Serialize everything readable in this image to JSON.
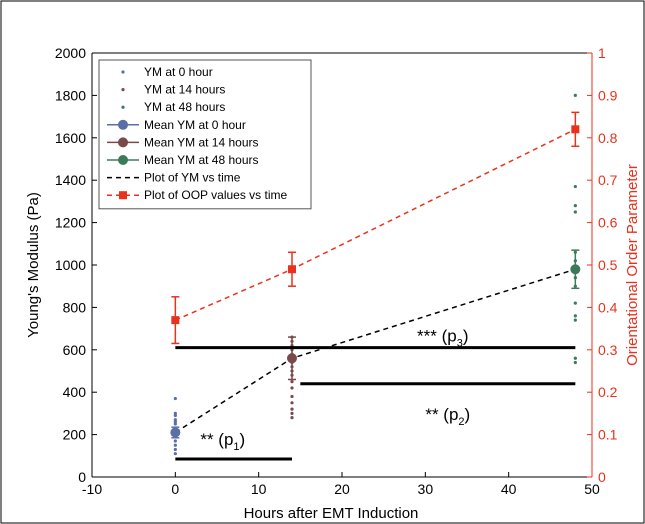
{
  "chart_data": {
    "type": "scatter",
    "xlabel": "Hours after EMT Induction",
    "ylabel": "Young's Modulus (Pa)",
    "y2label": "Orientational Order Parameter",
    "xlim": [
      -10,
      50
    ],
    "ylim": [
      0,
      2000
    ],
    "y2lim": [
      0,
      1
    ],
    "x_ticks": [
      "-10",
      "0",
      "10",
      "20",
      "30",
      "40",
      "50"
    ],
    "y_ticks": [
      "0",
      "200",
      "400",
      "600",
      "800",
      "1000",
      "1200",
      "1400",
      "1600",
      "1800",
      "2000"
    ],
    "y2_ticks": [
      "0",
      "0.1",
      "0.2",
      "0.3",
      "0.4",
      "0.5",
      "0.6",
      "0.7",
      "0.8",
      "0.9",
      "1"
    ],
    "grid": false,
    "legend_position": "top-left",
    "colors": {
      "ym0": "#5a6fa6",
      "ym14": "#7a4a4a",
      "ym48": "#3d7a5a",
      "ym_line": "#000000",
      "oop": "#e8321e",
      "axis_right": "#e8321e"
    },
    "legend": [
      {
        "key": "ym0_points",
        "label": "YM at 0 hour",
        "style": "dot",
        "color": "#5a6fa6"
      },
      {
        "key": "ym14_points",
        "label": "YM at 14 hours",
        "style": "dot",
        "color": "#7a4a4a"
      },
      {
        "key": "ym48_points",
        "label": "YM at 48 hours",
        "style": "dot",
        "color": "#3d7a5a"
      },
      {
        "key": "ym0_mean",
        "label": "Mean YM at 0 hour",
        "style": "line-circle",
        "color": "#5a6fa6"
      },
      {
        "key": "ym14_mean",
        "label": "Mean YM at 14 hours",
        "style": "line-circle",
        "color": "#7a4a4a"
      },
      {
        "key": "ym48_mean",
        "label": "Mean YM at 48 hours",
        "style": "line-circle",
        "color": "#3d7a5a"
      },
      {
        "key": "ym_plot",
        "label": "Plot of YM vs time",
        "style": "dashed",
        "color": "#000000"
      },
      {
        "key": "oop_plot",
        "label": "Plot of OOP values vs time",
        "style": "dashed-square",
        "color": "#e8321e"
      }
    ],
    "ym_points": [
      {
        "x": 0,
        "values": [
          110,
          130,
          150,
          170,
          190,
          200,
          210,
          220,
          230,
          250,
          260,
          270,
          290,
          300,
          370
        ],
        "color": "#5a6fa6"
      },
      {
        "x": 14,
        "values": [
          280,
          300,
          320,
          350,
          380,
          420,
          450,
          480,
          500,
          520,
          540,
          560,
          580,
          600,
          620,
          640,
          660
        ],
        "color": "#7a4a4a"
      },
      {
        "x": 48,
        "values": [
          540,
          560,
          740,
          760,
          820,
          900,
          940,
          980,
          1020,
          1060,
          1250,
          1280,
          1370,
          1800
        ],
        "color": "#3d7a5a"
      }
    ],
    "ym_mean": [
      {
        "x": 0,
        "y": 210,
        "err": 25,
        "color": "#5a6fa6"
      },
      {
        "x": 14,
        "y": 560,
        "err": 100,
        "color": "#7a4a4a"
      },
      {
        "x": 48,
        "y": 980,
        "err": 90,
        "color": "#3d7a5a"
      }
    ],
    "ym_line": {
      "x": [
        0,
        14,
        48
      ],
      "y": [
        210,
        560,
        980
      ]
    },
    "oop": {
      "x": [
        0,
        14,
        48
      ],
      "y": [
        0.37,
        0.49,
        0.82
      ],
      "err": [
        0.055,
        0.04,
        0.04
      ]
    },
    "significance": [
      {
        "label": "** (p",
        "sub": "1",
        "close": ")",
        "x1": 0,
        "x2": 14,
        "y": 85,
        "label_x": 3,
        "label_y": 150
      },
      {
        "label": "** (p",
        "sub": "2",
        "close": ")",
        "x1": 15,
        "x2": 48,
        "y": 440,
        "label_x": 30,
        "label_y": 270
      },
      {
        "label": "*** (p",
        "sub": "3",
        "close": ")",
        "x1": 0,
        "x2": 48,
        "y": 610,
        "label_x": 29,
        "label_y": 640
      }
    ]
  }
}
